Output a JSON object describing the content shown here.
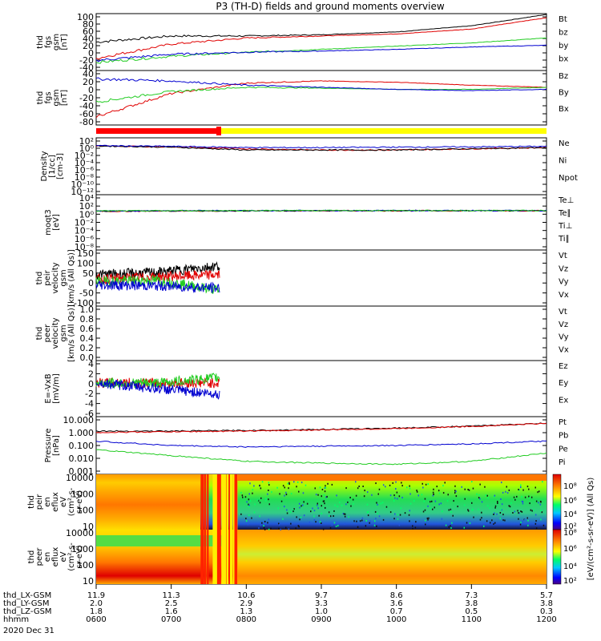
{
  "title": "P3 (TH-D) fields and ground moments overview",
  "colors": {
    "black": "#000000",
    "red": "#e00000",
    "green": "#22cc22",
    "blue": "#0000d0",
    "yellow": "#ffff00",
    "brightred": "#ff0000"
  },
  "panels": [
    {
      "ylabel": [
        "thd",
        "fgs",
        "gsm",
        "[nT]"
      ],
      "ticks": [
        "100",
        "80",
        "60",
        "40",
        "20",
        "0",
        "-20",
        "-40"
      ],
      "legend": [
        {
          "text": "Bt",
          "color": "black"
        },
        {
          "text": "bz",
          "color": "red"
        },
        {
          "text": "by",
          "color": "green"
        },
        {
          "text": "bx",
          "color": "blue"
        }
      ]
    },
    {
      "ylabel": [
        "thd",
        "fgs",
        "gsm",
        "[nT]"
      ],
      "ticks": [
        "40",
        "20",
        "0",
        "-20",
        "-40",
        "-60",
        "-80"
      ],
      "legend": [
        {
          "text": "Bz",
          "color": "red"
        },
        {
          "text": "By",
          "color": "green"
        },
        {
          "text": "Bx",
          "color": "blue"
        }
      ]
    },
    {
      "ylabel": [
        "Density",
        "[1/cc]",
        "[cm-3]"
      ],
      "ticks": [
        "10²",
        "10⁰",
        "10⁻²",
        "10⁻⁴",
        "10⁻⁶",
        "10⁻⁸",
        "10⁻¹⁰",
        "10⁻¹²"
      ],
      "legend": [
        {
          "text": "Ne",
          "color": "red"
        },
        {
          "text": "Ni",
          "color": "black"
        },
        {
          "text": "Npot",
          "color": "blue"
        }
      ]
    },
    {
      "ylabel": [
        "moqt3",
        "[eV]"
      ],
      "ticks": [
        "10⁴",
        "10²",
        "10⁰",
        "10⁻²",
        "10⁻⁴",
        "10⁻⁶",
        "10⁻⁸"
      ],
      "legend": [
        {
          "text": "Te⊥",
          "color": "red"
        },
        {
          "text": "Te∥",
          "color": "black"
        },
        {
          "text": "Ti⊥",
          "color": "blue"
        },
        {
          "text": "Ti∥",
          "color": "green"
        }
      ]
    },
    {
      "ylabel": [
        "thd",
        "peir",
        "velocity",
        "gsm",
        "[km/s (All Qs)]"
      ],
      "ticks": [
        "150",
        "100",
        "50",
        "0",
        "-50",
        "-100"
      ],
      "legend": [
        {
          "text": "Vt",
          "color": "black"
        },
        {
          "text": "Vz",
          "color": "red"
        },
        {
          "text": "Vy",
          "color": "green"
        },
        {
          "text": "Vx",
          "color": "blue"
        }
      ]
    },
    {
      "ylabel": [
        "thd",
        "peer",
        "velocity",
        "gsm",
        "[km/s (All Qs)]"
      ],
      "ticks": [
        "1.0",
        "0.8",
        "0.6",
        "0.4",
        "0.2",
        "0.0"
      ],
      "legend": [
        {
          "text": "Vt",
          "color": "black"
        },
        {
          "text": "Vz",
          "color": "red"
        },
        {
          "text": "Vy",
          "color": "green"
        },
        {
          "text": "Vx",
          "color": "blue"
        }
      ]
    },
    {
      "ylabel": [
        "E=-VxB",
        "[mV/m]"
      ],
      "ticks": [
        "4",
        "2",
        "0",
        "-2",
        "-4",
        "-6"
      ],
      "legend": [
        {
          "text": "Ez",
          "color": "red"
        },
        {
          "text": "Ey",
          "color": "green"
        },
        {
          "text": "Ex",
          "color": "blue"
        }
      ]
    },
    {
      "ylabel": [
        "Pressure",
        "[nPa]"
      ],
      "ticks": [
        "10.000",
        "1.000",
        "0.100",
        "0.010",
        "0.001"
      ],
      "legend": [
        {
          "text": "Pt",
          "color": "black"
        },
        {
          "text": "Pb",
          "color": "red"
        },
        {
          "text": "Pe",
          "color": "blue"
        },
        {
          "text": "Pi",
          "color": "green"
        }
      ]
    },
    {
      "ylabel": [
        "thd",
        "peir",
        "en",
        "eflux",
        "eV",
        "(cm²-s-",
        "sr-eV)"
      ],
      "ticks": [
        "10000",
        "1000",
        "100",
        "10"
      ]
    },
    {
      "ylabel": [
        "thd",
        "peer",
        "en",
        "eflux",
        "eV",
        "(cm²-s-",
        "sr-eV)"
      ],
      "ticks": [
        "10000",
        "1000",
        "100",
        "10"
      ]
    }
  ],
  "colorbar": {
    "ticks_top": [
      "10⁸",
      "10⁶",
      "10⁴",
      "10²"
    ],
    "ticks_bottom": [
      "10⁸",
      "10⁶",
      "10⁴",
      "10²"
    ],
    "label": "[eV/(cm²-s-sr-eV)] (All Qs)"
  },
  "xaxis": {
    "rows": [
      {
        "label": "thd_LX-GSM",
        "values": [
          "11.9",
          "11.3",
          "10.6",
          "9.7",
          "8.6",
          "7.3",
          "5.7"
        ]
      },
      {
        "label": "thd_LY-GSM",
        "values": [
          "2.0",
          "2.5",
          "2.9",
          "3.3",
          "3.6",
          "3.8",
          "3.8"
        ]
      },
      {
        "label": "thd_LZ-GSM",
        "values": [
          "1.8",
          "1.6",
          "1.3",
          "1.0",
          "0.7",
          "0.5",
          "0.3"
        ]
      },
      {
        "label": "hhmm",
        "values": [
          "0600",
          "0700",
          "0800",
          "0900",
          "1000",
          "1100",
          "1200"
        ]
      }
    ],
    "date": "2020 Dec 31"
  },
  "chart_data": {
    "type": "line",
    "title": "P3 (TH-D) fields and ground moments overview",
    "x": [
      "0600",
      "0700",
      "0800",
      "0900",
      "1000",
      "1100",
      "1200"
    ],
    "panels": [
      {
        "ylim": [
          -40,
          100
        ],
        "series": [
          {
            "name": "Bt",
            "values": [
              30,
              45,
              45,
              48,
              55,
              70,
              98
            ]
          },
          {
            "name": "bz",
            "values": [
              -10,
              25,
              40,
              45,
              50,
              62,
              90
            ]
          },
          {
            "name": "by",
            "values": [
              -20,
              -5,
              5,
              12,
              20,
              28,
              40
            ]
          },
          {
            "name": "bx",
            "values": [
              -15,
              0,
              5,
              8,
              12,
              18,
              22
            ]
          }
        ]
      },
      {
        "ylim": [
          -90,
          40
        ],
        "series": [
          {
            "name": "Bz",
            "values": [
              -70,
              -15,
              10,
              15,
              12,
              5,
              0
            ]
          },
          {
            "name": "By",
            "values": [
              -35,
              -10,
              0,
              -2,
              -5,
              -5,
              0
            ]
          },
          {
            "name": "Bx",
            "values": [
              20,
              15,
              5,
              0,
              -5,
              -8,
              -5
            ]
          }
        ]
      },
      {
        "log": true,
        "ylim": [
          -12,
          2
        ],
        "series": [
          {
            "name": "Ne",
            "values": [
              1,
              0.6,
              0.2,
              0.1,
              0.1,
              0.2,
              0.4
            ]
          },
          {
            "name": "Ni",
            "values": [
              1,
              0.5,
              0.1,
              0.1,
              0.1,
              0.2,
              0.4
            ]
          },
          {
            "name": "Npot",
            "values": [
              1.2,
              0.8,
              0.4,
              0.4,
              0.5,
              0.6,
              0.8
            ]
          }
        ]
      },
      {
        "log": true,
        "ylim": [
          -8,
          4
        ],
        "series": [
          {
            "name": "Te⊥",
            "values": [
              2.5,
              2.7,
              3.2,
              3.3,
              3.3,
              3.3,
              3.3
            ]
          },
          {
            "name": "Te∥",
            "values": [
              2.7,
              2.9,
              3.2,
              3.3,
              3.3,
              3.3,
              3.3
            ]
          },
          {
            "name": "Ti⊥",
            "values": [
              3.0,
              3.3,
              3.6,
              3.6,
              3.6,
              3.6,
              3.6
            ]
          },
          {
            "name": "Ti∥",
            "values": [
              3.0,
              3.3,
              3.6,
              3.6,
              3.6,
              3.6,
              3.6
            ]
          }
        ]
      },
      {
        "ylim": [
          -100,
          150
        ],
        "series": [
          {
            "name": "Vt",
            "values": [
              40,
              50,
              80
            ]
          },
          {
            "name": "Vz",
            "values": [
              20,
              30,
              40
            ]
          },
          {
            "name": "Vy",
            "values": [
              10,
              15,
              -30
            ]
          },
          {
            "name": "Vx",
            "values": [
              -5,
              -10,
              -20
            ]
          }
        ]
      },
      {
        "ylim": [
          0,
          1
        ],
        "series": []
      },
      {
        "ylim": [
          -6,
          4
        ],
        "series": [
          {
            "name": "Ez",
            "values": [
              0,
              0,
              0
            ]
          },
          {
            "name": "Ey",
            "values": [
              0,
              0,
              1
            ]
          },
          {
            "name": "Ex",
            "values": [
              0,
              -1,
              -2
            ]
          }
        ]
      },
      {
        "log": true,
        "ylim": [
          -3,
          1
        ],
        "series": [
          {
            "name": "Pt",
            "values": [
              1,
              1.0,
              1.1,
              1.3,
              1.6,
              2.2,
              3.5
            ]
          },
          {
            "name": "Pb",
            "values": [
              0.8,
              0.9,
              1.0,
              1.2,
              1.5,
              2.1,
              3.4
            ]
          },
          {
            "name": "Pe",
            "values": [
              0.2,
              0.1,
              0.08,
              0.09,
              0.1,
              0.13,
              0.2
            ]
          },
          {
            "name": "Pi",
            "values": [
              0.05,
              0.02,
              0.008,
              0.006,
              0.005,
              0.008,
              0.03
            ]
          }
        ]
      },
      {
        "type": "heatmap",
        "name": "peir"
      },
      {
        "type": "heatmap",
        "name": "peer"
      }
    ]
  }
}
